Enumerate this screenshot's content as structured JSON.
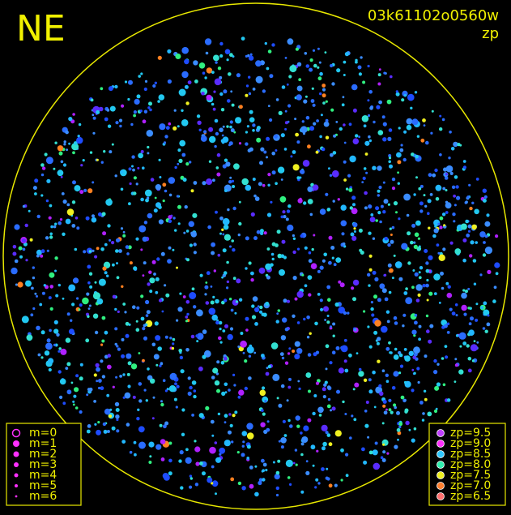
{
  "header": {
    "direction": "NE",
    "image_id": "03k61102o0560w",
    "mode": "zp"
  },
  "legend_magnitude": [
    "m=0",
    "m=1",
    "m=2",
    "m=3",
    "m=4",
    "m=5",
    "m=6"
  ],
  "legend_zp": [
    "zp=9.5",
    "zp=9.0",
    "zp=8.5",
    "zp=8.0",
    "zp=7.5",
    "zp=7.0",
    "zp=6.5"
  ]
}
